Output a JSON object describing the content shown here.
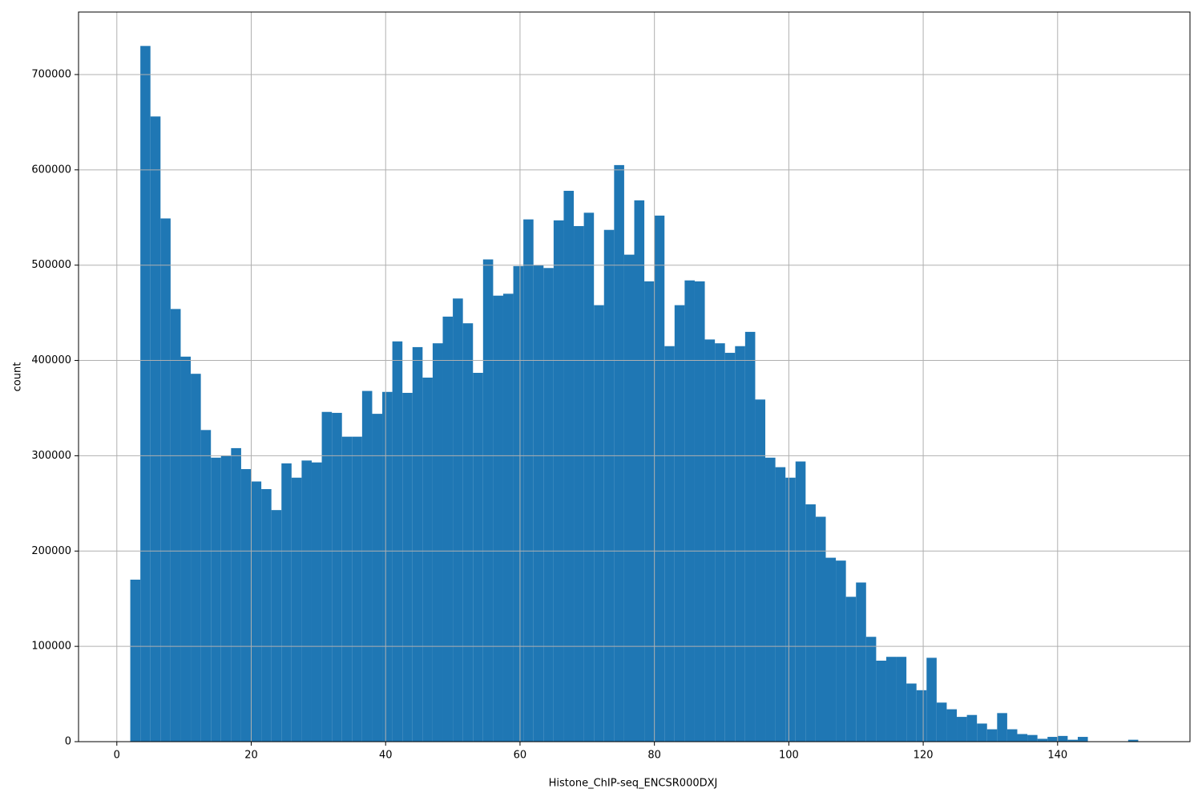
{
  "chart_data": {
    "type": "histogram",
    "xlabel": "Histone_ChIP-seq_ENCSR000DXJ",
    "ylabel": "count",
    "color": "#1f77b4",
    "grid": true,
    "bins": [
      2,
      3.5,
      5,
      6.5,
      8,
      9.5,
      11,
      12.5,
      14,
      15.5,
      17,
      18.5,
      20,
      21.5,
      23,
      24.5,
      26,
      27.5,
      29,
      30.5,
      32,
      33.5,
      35,
      36.5,
      38,
      39.5,
      41,
      42.5,
      44,
      45.5,
      47,
      48.5,
      50,
      51.5,
      53,
      54.5,
      56,
      57.5,
      59,
      60.5,
      62,
      63.5,
      65,
      66.5,
      68,
      69.5,
      71,
      72.5,
      74,
      75.5,
      77,
      78.5,
      80,
      81.5,
      83,
      84.5,
      86,
      87.5,
      89,
      90.5,
      92,
      93.5,
      95,
      96.5,
      98,
      99.5,
      101,
      102.5,
      104,
      105.5,
      107,
      108.5,
      110,
      111.5,
      113,
      114.5,
      116,
      117.5,
      119,
      120.5,
      122,
      123.5,
      125,
      126.5,
      128,
      129.5,
      131,
      132.5,
      134,
      135.5,
      137,
      138.5,
      140,
      141.5,
      143,
      144.5,
      146,
      147.5,
      149,
      150.5,
      152
    ],
    "counts": [
      170000,
      730000,
      656000,
      549000,
      454000,
      404000,
      386000,
      327000,
      298000,
      300000,
      308000,
      286000,
      273000,
      265000,
      243000,
      292000,
      277000,
      295000,
      293000,
      346000,
      345000,
      320000,
      320000,
      368000,
      344000,
      367000,
      420000,
      366000,
      414000,
      382000,
      418000,
      446000,
      465000,
      439000,
      387000,
      506000,
      468000,
      470000,
      499000,
      548000,
      500000,
      497000,
      547000,
      578000,
      541000,
      555000,
      458000,
      537000,
      605000,
      511000,
      568000,
      483000,
      552000,
      415000,
      458000,
      484000,
      483000,
      422000,
      418000,
      408000,
      415000,
      430000,
      359000,
      298000,
      288000,
      277000,
      294000,
      249000,
      236000,
      193000,
      190000,
      152000,
      167000,
      110000,
      85000,
      89000,
      89000,
      61000,
      54000,
      88000,
      41000,
      34000,
      26000,
      28000,
      19000,
      13000,
      30000,
      13000,
      8000,
      7000,
      3000,
      5000,
      6000,
      2000,
      5000,
      0,
      0,
      0,
      0,
      2000
    ],
    "xlim": [
      -5.7,
      159.7
    ],
    "ylim": [
      0,
      765600
    ],
    "xticks": [
      0,
      20,
      40,
      60,
      80,
      100,
      120,
      140
    ],
    "yticks": [
      0,
      100000,
      200000,
      300000,
      400000,
      500000,
      600000,
      700000
    ]
  }
}
